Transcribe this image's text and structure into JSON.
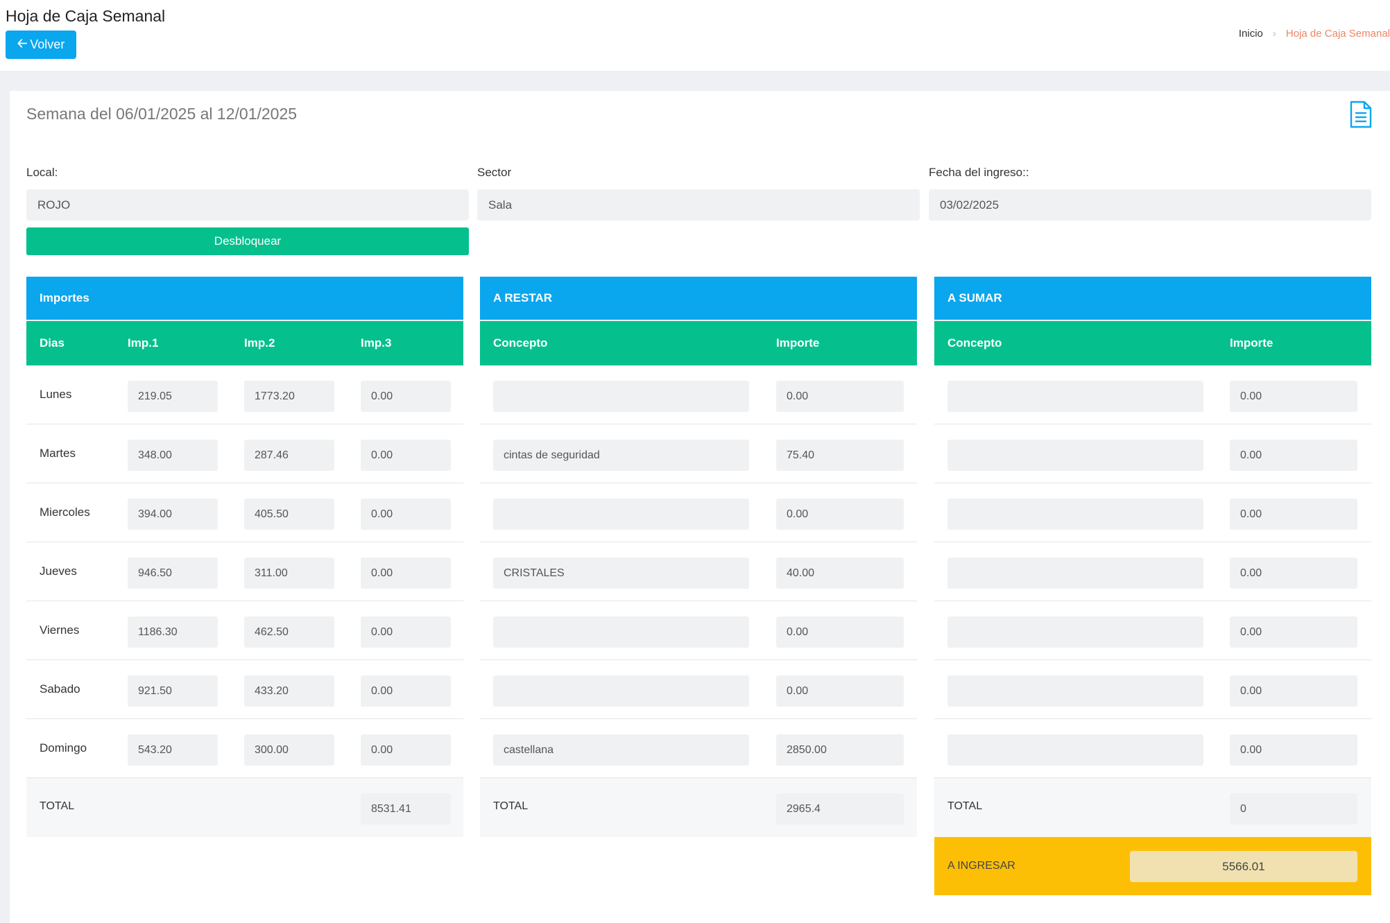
{
  "header": {
    "title": "Hoja de Caja Semanal",
    "back_label": "Volver",
    "breadcrumb_home": "Inicio",
    "breadcrumb_current": "Hoja de Caja Semanal"
  },
  "card": {
    "week_title": "Semana del 06/01/2025 al 12/01/2025",
    "doc_icon": "document-icon",
    "local_label": "Local:",
    "local_value": "ROJO",
    "sector_label": "Sector",
    "sector_value": "Sala",
    "fecha_label": "Fecha del ingreso::",
    "fecha_value": "03/02/2025",
    "unlock_label": "Desbloquear"
  },
  "importes": {
    "title": "Importes",
    "headers": [
      "Dias",
      "Imp.1",
      "Imp.2",
      "Imp.3"
    ],
    "rows": [
      {
        "day": "Lunes",
        "imp1": "219.05",
        "imp2": "1773.20",
        "imp3": "0.00"
      },
      {
        "day": "Martes",
        "imp1": "348.00",
        "imp2": "287.46",
        "imp3": "0.00"
      },
      {
        "day": "Miercoles",
        "imp1": "394.00",
        "imp2": "405.50",
        "imp3": "0.00"
      },
      {
        "day": "Jueves",
        "imp1": "946.50",
        "imp2": "311.00",
        "imp3": "0.00"
      },
      {
        "day": "Viernes",
        "imp1": "1186.30",
        "imp2": "462.50",
        "imp3": "0.00"
      },
      {
        "day": "Sabado",
        "imp1": "921.50",
        "imp2": "433.20",
        "imp3": "0.00"
      },
      {
        "day": "Domingo",
        "imp1": "543.20",
        "imp2": "300.00",
        "imp3": "0.00"
      }
    ],
    "total_label": "TOTAL",
    "total_value": "8531.41"
  },
  "restar": {
    "title": "A RESTAR",
    "headers": [
      "Concepto",
      "Importe"
    ],
    "rows": [
      {
        "concepto": "",
        "importe": "0.00"
      },
      {
        "concepto": "cintas de seguridad",
        "importe": "75.40"
      },
      {
        "concepto": "",
        "importe": "0.00"
      },
      {
        "concepto": "CRISTALES",
        "importe": "40.00"
      },
      {
        "concepto": "",
        "importe": "0.00"
      },
      {
        "concepto": "",
        "importe": "0.00"
      },
      {
        "concepto": "castellana",
        "importe": "2850.00"
      }
    ],
    "total_label": "TOTAL",
    "total_value": "2965.4"
  },
  "sumar": {
    "title": "A SUMAR",
    "headers": [
      "Concepto",
      "Importe"
    ],
    "rows": [
      {
        "concepto": "",
        "importe": "0.00"
      },
      {
        "concepto": "",
        "importe": "0.00"
      },
      {
        "concepto": "",
        "importe": "0.00"
      },
      {
        "concepto": "",
        "importe": "0.00"
      },
      {
        "concepto": "",
        "importe": "0.00"
      },
      {
        "concepto": "",
        "importe": "0.00"
      },
      {
        "concepto": "",
        "importe": "0.00"
      }
    ],
    "total_label": "TOTAL",
    "total_value": "0",
    "ingresar_label": "A INGRESAR",
    "ingresar_value": "5566.01"
  }
}
